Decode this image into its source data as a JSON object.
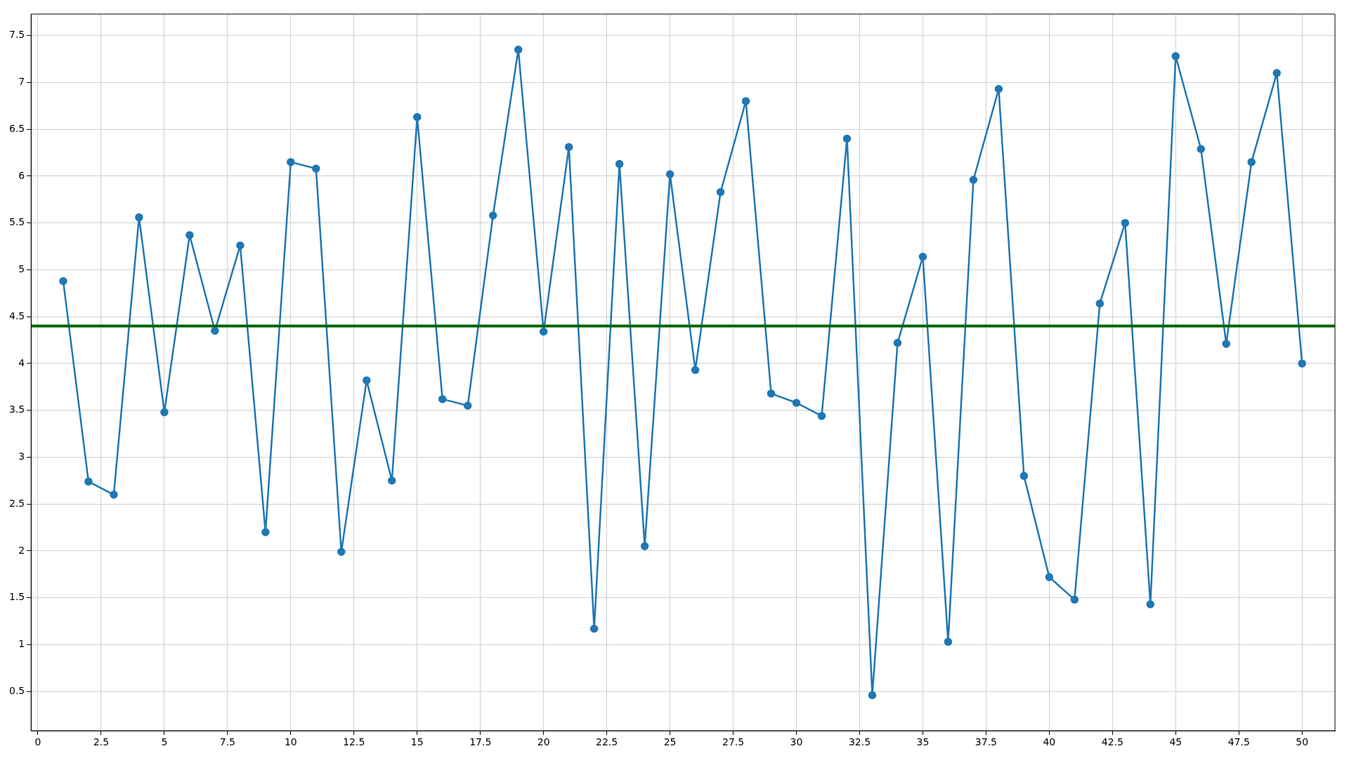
{
  "chart_data": {
    "type": "line",
    "x": [
      1,
      2,
      3,
      4,
      5,
      6,
      7,
      8,
      9,
      10,
      11,
      12,
      13,
      14,
      15,
      16,
      17,
      18,
      19,
      20,
      21,
      22,
      23,
      24,
      25,
      26,
      27,
      28,
      29,
      30,
      31,
      32,
      33,
      34,
      35,
      36,
      37,
      38,
      39,
      40,
      41,
      42,
      43,
      44,
      45,
      46,
      47,
      48,
      49,
      50
    ],
    "series": [
      {
        "color": "#1f77b4",
        "values": [
          4.88,
          2.74,
          2.6,
          5.56,
          3.48,
          5.37,
          4.35,
          5.26,
          2.2,
          6.15,
          6.08,
          1.99,
          3.82,
          2.75,
          6.63,
          3.62,
          3.55,
          5.58,
          7.35,
          4.34,
          6.31,
          1.17,
          6.13,
          2.05,
          6.02,
          3.93,
          5.83,
          6.8,
          3.68,
          3.58,
          3.44,
          6.4,
          0.46,
          4.22,
          5.14,
          1.03,
          5.96,
          6.93,
          2.8,
          1.72,
          1.48,
          4.64,
          5.5,
          1.43,
          7.28,
          6.29,
          4.21,
          6.15,
          7.1,
          4.0
        ]
      }
    ],
    "xlim": [
      -0.27,
      51.3
    ],
    "ylim": [
      0.08,
      7.73
    ],
    "xticks": [
      0,
      2.5,
      5,
      7.5,
      10,
      12.5,
      15,
      17.5,
      20,
      22.5,
      25,
      27.5,
      30,
      32.5,
      35,
      37.5,
      40,
      42.5,
      45,
      47.5,
      50
    ],
    "yticks": [
      0.5,
      1,
      1.5,
      2,
      2.5,
      3,
      3.5,
      4,
      4.5,
      5,
      5.5,
      6,
      6.5,
      7,
      7.5
    ],
    "ref_lines": [
      {
        "axis": "y",
        "value": 4.4,
        "color": "#006400",
        "line_style": "solid"
      }
    ],
    "grid": true,
    "legend": false,
    "marker": "circle",
    "line_style": "solid"
  }
}
